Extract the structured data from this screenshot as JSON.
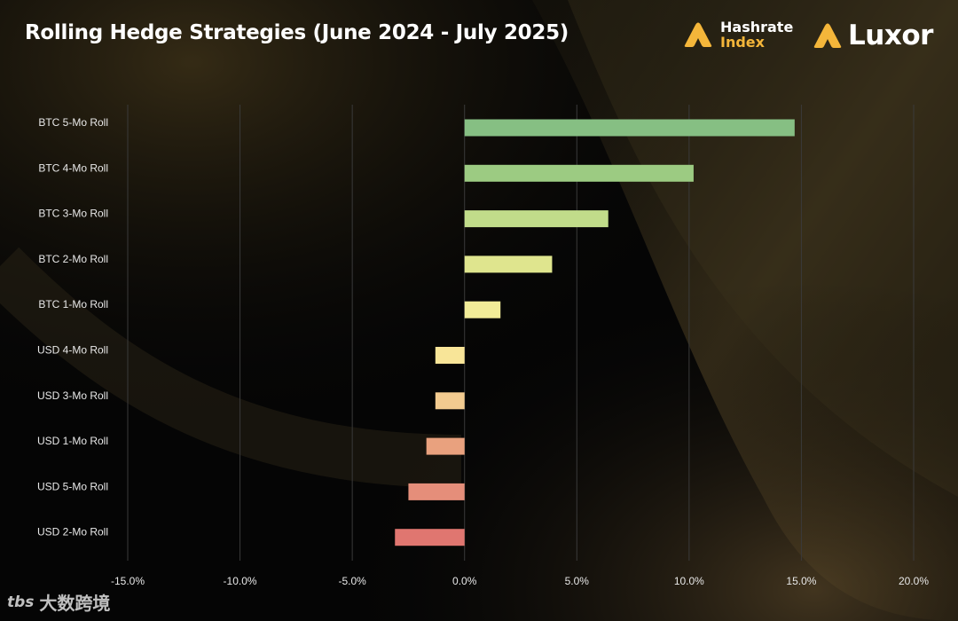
{
  "colors": {
    "background": "#050505",
    "gold_glow": "#4a3c1c",
    "brand_gold": "#f4b63a",
    "gridline": "#3a3a3a",
    "label": "#e8e8e8"
  },
  "brands": {
    "hashrate_line1": "Hashrate",
    "hashrate_line2": "Index",
    "luxor": "Luxor"
  },
  "watermark": {
    "icon_text": "tbs",
    "text": "大数跨境"
  },
  "chart_data": {
    "type": "bar",
    "orientation": "horizontal",
    "title": "Rolling Hedge Strategies (June 2024  - July 2025)",
    "xlabel": "",
    "ylabel": "",
    "xlim": [
      -0.15,
      0.2
    ],
    "xticks": [
      -0.15,
      -0.1,
      -0.05,
      0,
      0.05,
      0.1,
      0.15,
      0.2
    ],
    "xtick_labels": [
      "-15.0%",
      "-10.0%",
      "-5.0%",
      "0.0%",
      "5.0%",
      "10.0%",
      "15.0%",
      "20.0%"
    ],
    "grid": "vertical",
    "legend": "none",
    "categories": [
      "BTC 5-Mo Roll",
      "BTC 4-Mo Roll",
      "BTC 3-Mo Roll",
      "BTC 2-Mo Roll",
      "BTC 1-Mo Roll",
      "USD 4-Mo Roll",
      "USD 3-Mo Roll",
      "USD 1-Mo Roll",
      "USD 5-Mo Roll",
      "USD 2-Mo Roll"
    ],
    "values": [
      0.147,
      0.102,
      0.064,
      0.039,
      0.016,
      -0.013,
      -0.013,
      -0.017,
      -0.025,
      -0.031
    ],
    "bar_colors": [
      "#86bf83",
      "#9ccb82",
      "#c1dc8a",
      "#dfe58e",
      "#f2ec98",
      "#f8e598",
      "#f3cb90",
      "#e9a17e",
      "#e58e7a",
      "#e07670"
    ]
  }
}
